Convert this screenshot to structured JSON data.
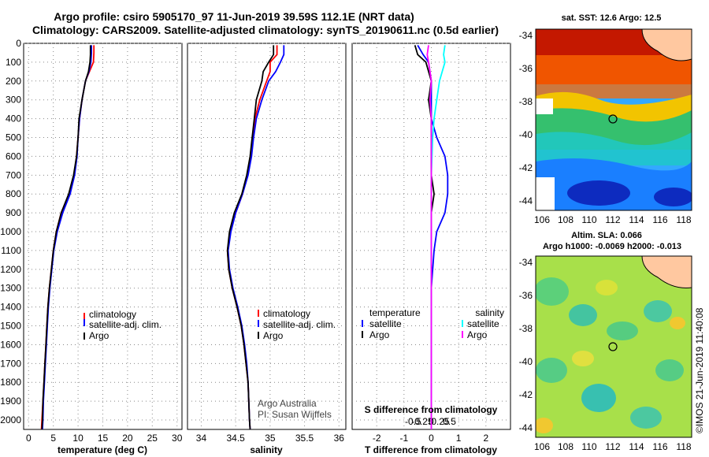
{
  "header": {
    "line1": "Argo profile: csiro 5905170_97 11-Jun-2019 39.59S 112.1E (NRT data)",
    "line2": "Climatology: CARS2009. Satellite-adjusted climatology: synTS_20190611.nc (0.5d earlier)"
  },
  "colors": {
    "climatology": "#ff0000",
    "satellite": "#0000ff",
    "argo": "#000000",
    "sat_salinity": "#00ffff",
    "argo_salinity": "#ff00ff"
  },
  "chart_data": [
    {
      "type": "line",
      "id": "temperature",
      "xlabel": "temperature (deg C)",
      "xlim": [
        -1,
        31
      ],
      "xticks": [
        0,
        5,
        10,
        15,
        20,
        25,
        30
      ],
      "ylim": [
        2050,
        0
      ],
      "yticks": [
        0,
        100,
        200,
        300,
        400,
        500,
        600,
        700,
        800,
        900,
        1000,
        1100,
        1200,
        1300,
        1400,
        1500,
        1600,
        1700,
        1800,
        1900,
        2000
      ],
      "legend": [
        "climatology",
        "satellite-adj. clim.",
        "Argo"
      ],
      "series": [
        {
          "name": "climatology",
          "color": "#ff0000",
          "points": [
            [
              13.2,
              10
            ],
            [
              13.2,
              50
            ],
            [
              13.1,
              100
            ],
            [
              12.3,
              150
            ],
            [
              11.5,
              200
            ],
            [
              10.8,
              300
            ],
            [
              10.3,
              400
            ],
            [
              10.0,
              500
            ],
            [
              9.7,
              600
            ],
            [
              9.2,
              700
            ],
            [
              8.2,
              800
            ],
            [
              6.6,
              900
            ],
            [
              5.6,
              1000
            ],
            [
              5.0,
              1100
            ],
            [
              4.6,
              1200
            ],
            [
              4.2,
              1300
            ],
            [
              3.9,
              1400
            ],
            [
              3.7,
              1500
            ],
            [
              3.5,
              1600
            ],
            [
              3.3,
              1700
            ],
            [
              3.1,
              1800
            ],
            [
              2.9,
              1900
            ],
            [
              2.7,
              2000
            ],
            [
              2.6,
              2050
            ]
          ]
        },
        {
          "name": "satellite-adj. clim.",
          "color": "#0000ff",
          "points": [
            [
              12.7,
              10
            ],
            [
              12.7,
              50
            ],
            [
              12.6,
              100
            ],
            [
              12.2,
              150
            ],
            [
              11.5,
              200
            ],
            [
              10.8,
              300
            ],
            [
              10.3,
              400
            ],
            [
              10.0,
              500
            ],
            [
              9.8,
              600
            ],
            [
              9.3,
              700
            ],
            [
              8.4,
              800
            ],
            [
              6.9,
              900
            ],
            [
              5.8,
              1000
            ],
            [
              5.1,
              1100
            ],
            [
              4.7,
              1200
            ],
            [
              4.3,
              1300
            ],
            [
              4.0,
              1400
            ],
            [
              3.8,
              1500
            ],
            [
              3.6,
              1600
            ],
            [
              3.4,
              1700
            ],
            [
              3.2,
              1800
            ],
            [
              3.0,
              1900
            ],
            [
              2.9,
              2000
            ],
            [
              2.8,
              2050
            ]
          ]
        },
        {
          "name": "Argo",
          "color": "#000000",
          "points": [
            [
              12.5,
              10
            ],
            [
              12.5,
              60
            ],
            [
              12.4,
              100
            ],
            [
              12.1,
              150
            ],
            [
              11.5,
              200
            ],
            [
              10.8,
              300
            ],
            [
              10.2,
              400
            ],
            [
              10.0,
              500
            ],
            [
              9.7,
              600
            ],
            [
              9.1,
              700
            ],
            [
              8.1,
              800
            ],
            [
              6.6,
              900
            ],
            [
              5.6,
              1000
            ],
            [
              5.0,
              1100
            ],
            [
              4.6,
              1200
            ],
            [
              4.2,
              1300
            ],
            [
              3.9,
              1400
            ],
            [
              3.7,
              1500
            ],
            [
              3.5,
              1600
            ],
            [
              3.3,
              1700
            ],
            [
              3.1,
              1800
            ],
            [
              2.9,
              1900
            ],
            [
              2.8,
              2000
            ],
            [
              2.7,
              2050
            ]
          ]
        }
      ]
    },
    {
      "type": "line",
      "id": "salinity",
      "xlabel": "salinity",
      "xlim": [
        33.8,
        36.1
      ],
      "xticks": [
        34,
        34.5,
        35,
        35.5,
        36
      ],
      "xtick_labels": [
        "34",
        "34.5",
        "35",
        "35.5",
        "36"
      ],
      "ylim": [
        2050,
        0
      ],
      "legend": [
        "climatology",
        "satellite-adj. clim.",
        "Argo"
      ],
      "credit": [
        "Argo Australia",
        "PI: Susan Wijffels"
      ],
      "series": [
        {
          "name": "climatology",
          "color": "#ff0000",
          "points": [
            [
              35.1,
              10
            ],
            [
              35.1,
              60
            ],
            [
              35.0,
              100
            ],
            [
              35.0,
              150
            ],
            [
              34.95,
              200
            ],
            [
              34.85,
              300
            ],
            [
              34.78,
              400
            ],
            [
              34.75,
              500
            ],
            [
              34.72,
              600
            ],
            [
              34.67,
              700
            ],
            [
              34.6,
              800
            ],
            [
              34.5,
              900
            ],
            [
              34.42,
              1000
            ],
            [
              34.38,
              1100
            ],
            [
              34.4,
              1200
            ],
            [
              34.45,
              1300
            ],
            [
              34.52,
              1400
            ],
            [
              34.58,
              1500
            ],
            [
              34.62,
              1600
            ],
            [
              34.65,
              1700
            ],
            [
              34.68,
              1800
            ],
            [
              34.69,
              1900
            ],
            [
              34.7,
              2000
            ],
            [
              34.71,
              2050
            ]
          ]
        },
        {
          "name": "satellite-adj. clim.",
          "color": "#0000ff",
          "points": [
            [
              35.2,
              10
            ],
            [
              35.2,
              60
            ],
            [
              35.15,
              100
            ],
            [
              35.08,
              150
            ],
            [
              34.98,
              200
            ],
            [
              34.88,
              300
            ],
            [
              34.8,
              400
            ],
            [
              34.76,
              500
            ],
            [
              34.73,
              600
            ],
            [
              34.68,
              700
            ],
            [
              34.6,
              800
            ],
            [
              34.5,
              900
            ],
            [
              34.43,
              1000
            ],
            [
              34.39,
              1100
            ],
            [
              34.41,
              1200
            ],
            [
              34.46,
              1300
            ],
            [
              34.53,
              1400
            ],
            [
              34.59,
              1500
            ],
            [
              34.63,
              1600
            ],
            [
              34.66,
              1700
            ],
            [
              34.68,
              1800
            ],
            [
              34.69,
              1900
            ],
            [
              34.7,
              2000
            ],
            [
              34.71,
              2050
            ]
          ]
        },
        {
          "name": "Argo",
          "color": "#000000",
          "points": [
            [
              35.05,
              10
            ],
            [
              35.05,
              60
            ],
            [
              34.98,
              100
            ],
            [
              34.9,
              150
            ],
            [
              34.88,
              200
            ],
            [
              34.8,
              300
            ],
            [
              34.77,
              400
            ],
            [
              34.74,
              500
            ],
            [
              34.71,
              600
            ],
            [
              34.66,
              700
            ],
            [
              34.59,
              800
            ],
            [
              34.48,
              900
            ],
            [
              34.41,
              1000
            ],
            [
              34.38,
              1100
            ],
            [
              34.4,
              1200
            ],
            [
              34.45,
              1300
            ],
            [
              34.52,
              1400
            ],
            [
              34.58,
              1500
            ],
            [
              34.62,
              1600
            ],
            [
              34.65,
              1700
            ],
            [
              34.68,
              1800
            ],
            [
              34.69,
              1900
            ],
            [
              34.7,
              2000
            ],
            [
              34.71,
              2050
            ]
          ]
        }
      ]
    },
    {
      "type": "line",
      "id": "difference",
      "xlabel": "T difference from climatology",
      "xlabel2": "S difference from climatology",
      "xlim": [
        -2.9,
        2.9
      ],
      "xticks": [
        -2,
        -1,
        0,
        1,
        2
      ],
      "xticks2": [
        -0.5,
        -0.25,
        0,
        0.25,
        0.5
      ],
      "xtick2_labels": [
        "-0.5",
        "-0.25",
        "0",
        "0.25",
        "0.5"
      ],
      "ylim": [
        2050,
        0
      ],
      "legend_left_title": "temperature",
      "legend_right_title": "salinity",
      "legend_left": [
        "satellite",
        "Argo"
      ],
      "legend_right": [
        "satellite",
        "Argo"
      ],
      "series": [
        {
          "name": "T satellite",
          "color": "#0000ff",
          "points": [
            [
              -0.5,
              10
            ],
            [
              -0.3,
              60
            ],
            [
              -0.1,
              100
            ],
            [
              0.0,
              200
            ],
            [
              0.0,
              400
            ],
            [
              0.2,
              500
            ],
            [
              0.5,
              600
            ],
            [
              0.6,
              700
            ],
            [
              0.6,
              800
            ],
            [
              0.5,
              900
            ],
            [
              0.2,
              1000
            ],
            [
              0.1,
              1100
            ],
            [
              0.0,
              1300
            ],
            [
              0.0,
              2050
            ]
          ]
        },
        {
          "name": "T Argo",
          "color": "#000000",
          "points": [
            [
              -0.6,
              10
            ],
            [
              -0.5,
              60
            ],
            [
              -0.2,
              100
            ],
            [
              0.0,
              200
            ],
            [
              -0.1,
              300
            ],
            [
              0.0,
              400
            ],
            [
              0.0,
              700
            ],
            [
              0.1,
              800
            ],
            [
              0.0,
              900
            ],
            [
              0.0,
              2050
            ]
          ]
        },
        {
          "name": "S satellite",
          "color": "#00ffff",
          "points": [
            [
              0.5,
              10
            ],
            [
              0.45,
              60
            ],
            [
              0.5,
              100
            ],
            [
              0.3,
              200
            ],
            [
              0.2,
              300
            ],
            [
              0.1,
              400
            ],
            [
              0.05,
              500
            ],
            [
              0.0,
              700
            ],
            [
              0.0,
              2050
            ]
          ]
        },
        {
          "name": "S Argo",
          "color": "#ff00ff",
          "points": [
            [
              -0.1,
              10
            ],
            [
              -0.15,
              60
            ],
            [
              -0.1,
              100
            ],
            [
              0.0,
              200
            ],
            [
              -0.05,
              300
            ],
            [
              0.0,
              400
            ],
            [
              0.0,
              2050
            ]
          ]
        }
      ]
    }
  ],
  "maps": {
    "sst_title": "sat. SST: 12.6 Argo: 12.5",
    "sla_title_1": "Altim. SLA: 0.066",
    "sla_title_2": "Argo h1000: -0.0069 h2000: -0.013",
    "lat_ticks": [
      "-34",
      "-36",
      "-38",
      "-40",
      "-42",
      "-44"
    ],
    "lon_ticks": [
      "106",
      "108",
      "110",
      "112",
      "114",
      "116",
      "118"
    ],
    "timestamp": "©IMOS 21-Jun-2019 11:40:08"
  }
}
